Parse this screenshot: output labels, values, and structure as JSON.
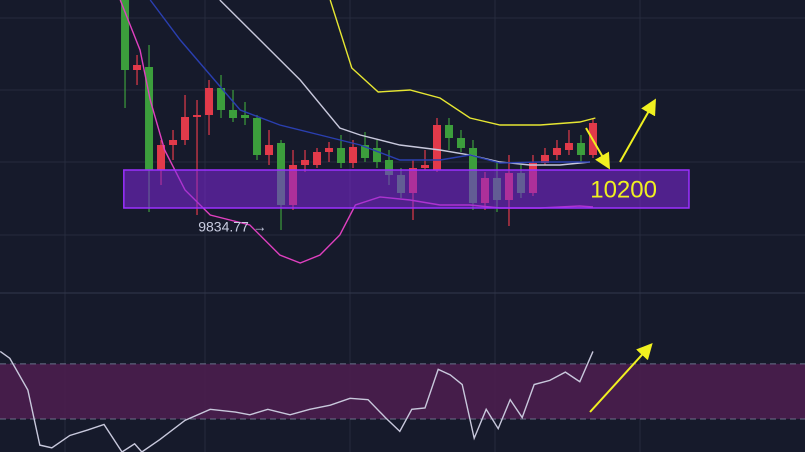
{
  "chart_data": [
    {
      "type": "candlestick",
      "xlim": [
        -10.42,
        56.67
      ],
      "ylim": [
        9190,
        12090
      ],
      "up_color": "#e23a4a",
      "down_color": "#3c9e3c",
      "candles": {
        "open": [
          12090,
          11390,
          11420,
          10390,
          10640,
          10690,
          10920,
          10940,
          11210,
          10990,
          10940,
          10910,
          10540,
          10660,
          10040,
          10440,
          10440,
          10570,
          10610,
          10460,
          10640,
          10610,
          10490,
          10340,
          10160,
          10410,
          10390,
          10840,
          10710,
          10610,
          10060,
          10310,
          10090,
          10360,
          10160,
          10460,
          10540,
          10590,
          10660,
          10540
        ],
        "high": [
          12090,
          11540,
          11640,
          10690,
          10790,
          11140,
          11090,
          11290,
          11340,
          11190,
          11070,
          10940,
          10790,
          10690,
          10590,
          10590,
          10610,
          10670,
          10740,
          10690,
          10770,
          10690,
          10590,
          10410,
          10490,
          10590,
          10910,
          10910,
          10790,
          10690,
          10370,
          10470,
          10540,
          10440,
          10540,
          10610,
          10690,
          10790,
          10740,
          10910
        ],
        "low": [
          11010,
          11240,
          9970,
          10240,
          10490,
          10640,
          9940,
          10740,
          10910,
          10870,
          10840,
          10490,
          10440,
          9790,
          9990,
          10370,
          10410,
          10470,
          10410,
          10410,
          10470,
          10410,
          10240,
          10110,
          9890,
          10390,
          10370,
          10590,
          10570,
          9990,
          9990,
          9970,
          9830,
          10110,
          10130,
          10440,
          10490,
          10540,
          10470,
          10510
        ],
        "close": [
          11390,
          11440,
          10390,
          10640,
          10690,
          10920,
          10940,
          11210,
          10990,
          10910,
          10910,
          10540,
          10640,
          10040,
          10440,
          10490,
          10570,
          10610,
          10460,
          10620,
          10510,
          10470,
          10340,
          10160,
          10410,
          10440,
          10840,
          10710,
          10610,
          10060,
          10310,
          10090,
          10360,
          10160,
          10460,
          10540,
          10610,
          10660,
          10540,
          10860
        ]
      },
      "overlays": [
        {
          "color": "#e6e632",
          "x": [
            17.1,
            18.9,
            21.1,
            23.75,
            26.25,
            28.75,
            31.25,
            34.6,
            37.9,
            39.2
          ],
          "values": [
            12090,
            11410,
            11170,
            11190,
            11110,
            10910,
            10840,
            10840,
            10870,
            10910
          ]
        },
        {
          "color": "#c8c8dc",
          "x": [
            7.9,
            11.25,
            14.6,
            17.9,
            19.6,
            22.9,
            26.25,
            28.75,
            31.25,
            33.75,
            36.25,
            38.75
          ],
          "values": [
            12090,
            11690,
            11290,
            10810,
            10740,
            10640,
            10590,
            10540,
            10470,
            10440,
            10440,
            10470
          ]
        },
        {
          "color": "#2a3fb0",
          "x": [
            2.1,
            4.6,
            7.1,
            9.6,
            12.9,
            16.25,
            19.6,
            22.9,
            26.25,
            28.75,
            31.25,
            34.6,
            38.75
          ],
          "values": [
            12090,
            11690,
            11340,
            10990,
            10840,
            10740,
            10640,
            10490,
            10490,
            10540,
            10460,
            10470,
            10470
          ]
        },
        {
          "color": "#e040c0",
          "x": [
            -0.4,
            1.25,
            2.1,
            3.3,
            5,
            7.1,
            10.4,
            12.9,
            14.6,
            16.25,
            17.9,
            19.2,
            21.25,
            23.75,
            26.25,
            28.75,
            31.25,
            34.6,
            37.9,
            39
          ],
          "values": [
            12090,
            11590,
            11090,
            10590,
            10190,
            9940,
            9840,
            9540,
            9460,
            9540,
            9740,
            10040,
            10120,
            10090,
            10040,
            10040,
            10010,
            10010,
            10030,
            10020
          ]
        }
      ],
      "zone": {
        "label": "10200",
        "low": 10010,
        "high": 10390,
        "x": [
          -0.1,
          47
        ]
      },
      "annotations": [
        {
          "text": "9834.77 →",
          "x": 6.1,
          "y": 9810
        }
      ]
    },
    {
      "type": "line",
      "xlim": [
        -10.42,
        56.67
      ],
      "ylim": [
        6,
        120
      ],
      "levels": [
        70,
        30
      ],
      "band_color": "#4a1e4e",
      "series": [
        {
          "color": "#c8c8dc",
          "x": [
            -10.4,
            -9.6,
            -8.1,
            -7.1,
            -6.1,
            -4.6,
            -3.1,
            -1.75,
            -0.25,
            0.8,
            1.4,
            2.9,
            5,
            7.1,
            9.2,
            10.4,
            11.9,
            13.75,
            15.4,
            17.1,
            18.75,
            20.25,
            21.7,
            22.9,
            23.9,
            25,
            26.1,
            27.1,
            28.1,
            29.1,
            30.1,
            31.1,
            32.1,
            33.1,
            34.1,
            35.4,
            36.7,
            37.9,
            39
          ],
          "values": [
            79,
            74,
            51,
            11,
            9,
            18,
            22,
            26,
            6,
            12,
            6,
            15,
            29,
            37,
            35,
            33,
            37,
            33,
            37,
            40,
            45,
            44,
            31,
            21,
            37,
            38,
            66,
            62,
            55,
            16,
            37,
            23,
            44,
            31,
            55,
            58,
            64,
            57,
            79
          ]
        }
      ]
    }
  ]
}
